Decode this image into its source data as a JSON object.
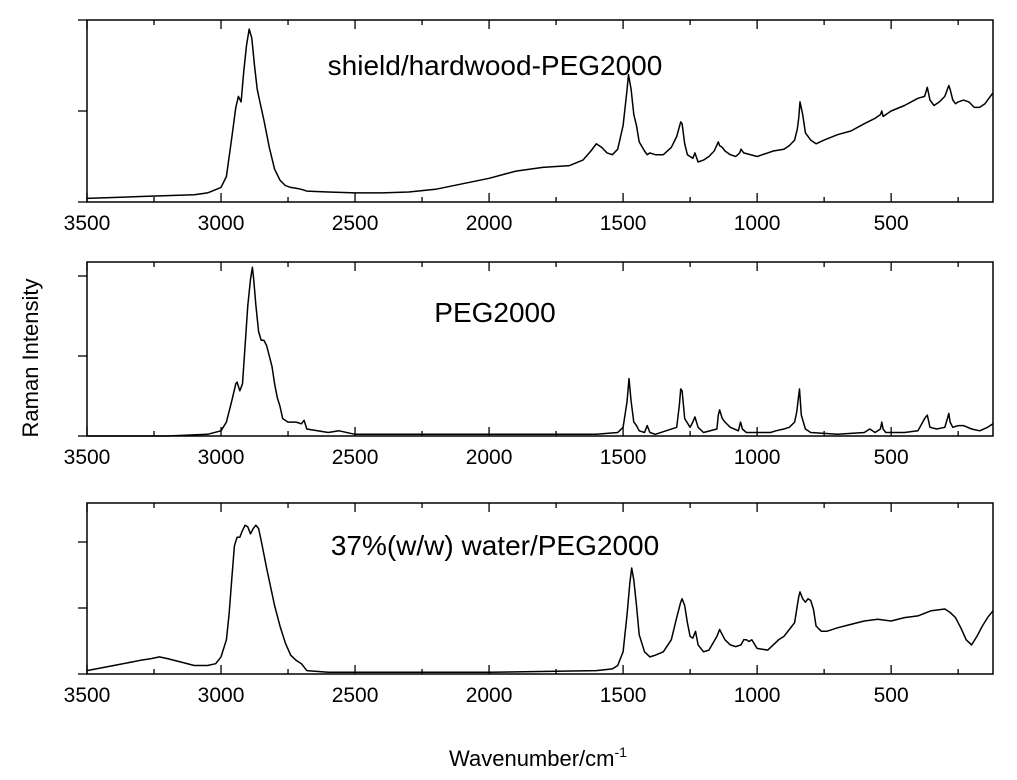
{
  "chart_data": {
    "type": "line",
    "ylabel": "Raman Intensity",
    "xlabel": "Wavenumber/cm",
    "xlabel_sup": "-1",
    "xlim": [
      3500,
      120
    ],
    "xticks": [
      "3500",
      "3000",
      "2500",
      "2000",
      "1500",
      "1000",
      "500"
    ],
    "ylim": [
      0,
      1
    ],
    "panels": [
      {
        "title": "shield/hardwood-PEG2000",
        "series": [
          {
            "x": [
              3500,
              3300,
              3100,
              3050,
              3000,
              2980,
              2960,
              2945,
              2935,
              2925,
              2915,
              2905,
              2895,
              2885,
              2875,
              2865,
              2855,
              2840,
              2820,
              2800,
              2780,
              2760,
              2740,
              2720,
              2700,
              2680,
              2600,
              2500,
              2400,
              2300,
              2200,
              2100,
              2000,
              1900,
              1800,
              1700,
              1650,
              1620,
              1600,
              1580,
              1560,
              1540,
              1520,
              1500,
              1485,
              1480,
              1470,
              1460,
              1450,
              1440,
              1420,
              1410,
              1400,
              1380,
              1350,
              1320,
              1300,
              1285,
              1280,
              1270,
              1260,
              1240,
              1232,
              1220,
              1200,
              1180,
              1160,
              1145,
              1140,
              1130,
              1120,
              1100,
              1080,
              1065,
              1060,
              1050,
              1000,
              960,
              940,
              900,
              880,
              860,
              850,
              845,
              840,
              830,
              820,
              800,
              780,
              750,
              700,
              650,
              600,
              560,
              540,
              535,
              530,
              520,
              500,
              450,
              400,
              375,
              365,
              355,
              340,
              320,
              300,
              290,
              285,
              280,
              270,
              260,
              250,
              230,
              210,
              190,
              170,
              150,
              130,
              120
            ],
            "y": [
              0.02,
              0.03,
              0.04,
              0.05,
              0.08,
              0.14,
              0.35,
              0.52,
              0.58,
              0.55,
              0.72,
              0.86,
              0.95,
              0.9,
              0.75,
              0.62,
              0.55,
              0.45,
              0.3,
              0.18,
              0.12,
              0.09,
              0.08,
              0.075,
              0.07,
              0.06,
              0.055,
              0.05,
              0.05,
              0.055,
              0.07,
              0.1,
              0.13,
              0.17,
              0.19,
              0.2,
              0.23,
              0.28,
              0.32,
              0.3,
              0.27,
              0.26,
              0.29,
              0.42,
              0.62,
              0.7,
              0.62,
              0.48,
              0.42,
              0.33,
              0.28,
              0.26,
              0.27,
              0.26,
              0.26,
              0.3,
              0.36,
              0.44,
              0.43,
              0.32,
              0.26,
              0.24,
              0.27,
              0.22,
              0.23,
              0.25,
              0.28,
              0.33,
              0.31,
              0.3,
              0.28,
              0.26,
              0.25,
              0.27,
              0.29,
              0.27,
              0.25,
              0.27,
              0.28,
              0.29,
              0.31,
              0.34,
              0.4,
              0.46,
              0.55,
              0.48,
              0.38,
              0.34,
              0.32,
              0.34,
              0.37,
              0.39,
              0.43,
              0.46,
              0.48,
              0.5,
              0.47,
              0.48,
              0.5,
              0.53,
              0.57,
              0.58,
              0.63,
              0.56,
              0.53,
              0.55,
              0.58,
              0.62,
              0.64,
              0.62,
              0.56,
              0.54,
              0.55,
              0.56,
              0.55,
              0.52,
              0.52,
              0.54,
              0.58,
              0.6
            ]
          }
        ]
      },
      {
        "title": "PEG2000",
        "series": [
          {
            "x": [
              3500,
              3200,
              3050,
              3000,
              2980,
              2960,
              2945,
              2940,
              2930,
              2920,
              2910,
              2900,
              2890,
              2883,
              2878,
              2870,
              2860,
              2850,
              2840,
              2830,
              2820,
              2810,
              2800,
              2790,
              2780,
              2770,
              2750,
              2720,
              2700,
              2690,
              2680,
              2600,
              2560,
              2500,
              2000,
              1600,
              1520,
              1500,
              1485,
              1478,
              1470,
              1460,
              1450,
              1440,
              1420,
              1410,
              1400,
              1380,
              1300,
              1290,
              1285,
              1280,
              1270,
              1250,
              1240,
              1232,
              1220,
              1200,
              1150,
              1145,
              1140,
              1130,
              1120,
              1100,
              1070,
              1062,
              1055,
              1040,
              1000,
              950,
              930,
              900,
              880,
              860,
              852,
              846,
              842,
              835,
              820,
              800,
              700,
              600,
              580,
              560,
              540,
              535,
              530,
              520,
              500,
              450,
              400,
              375,
              365,
              355,
              330,
              300,
              290,
              285,
              280,
              270,
              250,
              230,
              200,
              170,
              140,
              120
            ],
            "y": [
              0.0,
              0.0,
              0.01,
              0.03,
              0.08,
              0.2,
              0.3,
              0.31,
              0.26,
              0.3,
              0.52,
              0.75,
              0.9,
              0.97,
              0.9,
              0.75,
              0.6,
              0.55,
              0.55,
              0.52,
              0.46,
              0.4,
              0.3,
              0.22,
              0.17,
              0.1,
              0.08,
              0.08,
              0.07,
              0.09,
              0.04,
              0.02,
              0.03,
              0.01,
              0.01,
              0.01,
              0.02,
              0.05,
              0.2,
              0.33,
              0.2,
              0.08,
              0.06,
              0.03,
              0.02,
              0.06,
              0.02,
              0.01,
              0.05,
              0.18,
              0.27,
              0.26,
              0.1,
              0.05,
              0.08,
              0.11,
              0.05,
              0.02,
              0.04,
              0.12,
              0.15,
              0.1,
              0.08,
              0.05,
              0.03,
              0.08,
              0.04,
              0.02,
              0.02,
              0.02,
              0.03,
              0.04,
              0.05,
              0.08,
              0.14,
              0.22,
              0.27,
              0.12,
              0.04,
              0.02,
              0.01,
              0.02,
              0.04,
              0.02,
              0.04,
              0.08,
              0.04,
              0.02,
              0.02,
              0.02,
              0.03,
              0.1,
              0.12,
              0.05,
              0.04,
              0.05,
              0.1,
              0.13,
              0.08,
              0.05,
              0.06,
              0.06,
              0.04,
              0.03,
              0.05,
              0.07
            ]
          }
        ]
      },
      {
        "title": "37%(w/w) water/PEG2000",
        "series": [
          {
            "x": [
              3500,
              3400,
              3300,
              3260,
              3230,
              3200,
              3150,
              3100,
              3050,
              3020,
              3000,
              2980,
              2970,
              2960,
              2950,
              2940,
              2930,
              2920,
              2910,
              2900,
              2890,
              2880,
              2870,
              2860,
              2850,
              2830,
              2800,
              2780,
              2760,
              2740,
              2720,
              2700,
              2680,
              2600,
              2500,
              2000,
              1600,
              1540,
              1520,
              1500,
              1485,
              1475,
              1468,
              1460,
              1450,
              1440,
              1420,
              1400,
              1380,
              1350,
              1320,
              1300,
              1285,
              1280,
              1270,
              1260,
              1250,
              1240,
              1230,
              1220,
              1200,
              1180,
              1150,
              1140,
              1130,
              1120,
              1100,
              1080,
              1060,
              1050,
              1040,
              1030,
              1020,
              1000,
              960,
              940,
              920,
              900,
              880,
              860,
              850,
              845,
              840,
              830,
              820,
              810,
              800,
              790,
              780,
              760,
              740,
              700,
              650,
              600,
              550,
              500,
              450,
              400,
              350,
              300,
              280,
              260,
              240,
              220,
              200,
              180,
              160,
              140,
              120
            ],
            "y": [
              0.02,
              0.05,
              0.08,
              0.09,
              0.1,
              0.09,
              0.07,
              0.05,
              0.05,
              0.06,
              0.1,
              0.2,
              0.35,
              0.55,
              0.75,
              0.8,
              0.8,
              0.84,
              0.87,
              0.86,
              0.82,
              0.85,
              0.87,
              0.85,
              0.78,
              0.62,
              0.4,
              0.28,
              0.18,
              0.11,
              0.08,
              0.06,
              0.02,
              0.01,
              0.01,
              0.01,
              0.02,
              0.03,
              0.05,
              0.13,
              0.35,
              0.53,
              0.62,
              0.55,
              0.4,
              0.23,
              0.13,
              0.1,
              0.11,
              0.13,
              0.2,
              0.33,
              0.42,
              0.44,
              0.4,
              0.3,
              0.22,
              0.21,
              0.25,
              0.17,
              0.13,
              0.14,
              0.22,
              0.26,
              0.23,
              0.2,
              0.17,
              0.16,
              0.17,
              0.2,
              0.2,
              0.19,
              0.2,
              0.15,
              0.14,
              0.17,
              0.2,
              0.22,
              0.26,
              0.3,
              0.4,
              0.45,
              0.48,
              0.44,
              0.42,
              0.44,
              0.43,
              0.38,
              0.28,
              0.25,
              0.25,
              0.27,
              0.29,
              0.31,
              0.32,
              0.31,
              0.33,
              0.34,
              0.37,
              0.38,
              0.36,
              0.33,
              0.27,
              0.2,
              0.17,
              0.22,
              0.28,
              0.33,
              0.37
            ]
          }
        ]
      }
    ]
  }
}
